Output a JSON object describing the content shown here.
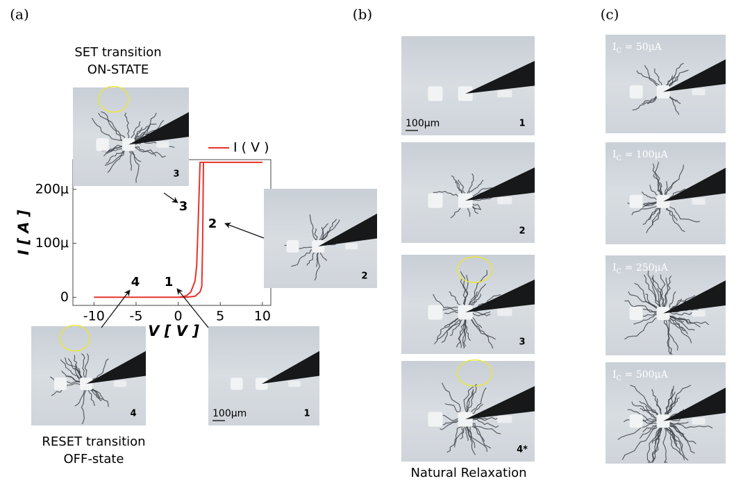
{
  "panel_labels": [
    "(a)",
    "(b)",
    "(c)"
  ],
  "chart_data": {
    "type": "line",
    "xlabel": "V [ V ]",
    "ylabel": "I [ A ]",
    "x": [
      -10,
      0,
      1,
      2,
      2.6,
      2.8,
      2.9,
      3,
      10,
      2.6,
      2.4,
      2.2,
      2,
      1.5,
      1,
      0.5,
      0,
      -10
    ],
    "series": [
      {
        "name": "I ( V )",
        "color": "#e8322a",
        "values": [
          0,
          0,
          0,
          2e-06,
          1e-05,
          2e-05,
          0.0001,
          0.00025,
          0.00025,
          0.00025,
          0.00015,
          6e-05,
          3e-05,
          1e-05,
          3e-06,
          1e-06,
          0,
          0
        ]
      }
    ],
    "xlim": [
      -12.5,
      11
    ],
    "xticks": [
      -10,
      -5,
      0,
      5,
      10
    ],
    "ylim": [
      -1.5e-05,
      0.000255
    ],
    "yticks": [
      0,
      {
        "value": 0.0001,
        "label": "100μ"
      },
      {
        "value": 0.0002,
        "label": "200μ"
      }
    ],
    "legend": "top-right",
    "annotations": [
      "3",
      "2",
      "1",
      "4"
    ]
  },
  "panel_a": {
    "set_caption": [
      "SET transition",
      "ON-STATE"
    ],
    "reset_caption": [
      "RESET transition",
      "OFF-state"
    ],
    "images": [
      {
        "label": "3"
      },
      {
        "label": "2"
      },
      {
        "label": "4"
      },
      {
        "label": "1",
        "scale": "100μm"
      }
    ]
  },
  "panel_b": {
    "caption": "Natural Relaxation",
    "images": [
      {
        "label": "1",
        "scale": "100μm"
      },
      {
        "label": "2"
      },
      {
        "label": "3"
      },
      {
        "label": "4*"
      }
    ]
  },
  "panel_c": {
    "images": [
      {
        "symbol": "I",
        "subscript": "C",
        "text": " = 50μA"
      },
      {
        "symbol": "I",
        "subscript": "C",
        "text": " = 100μA"
      },
      {
        "symbol": "I",
        "subscript": "C",
        "text": " = 250μA"
      },
      {
        "symbol": "I",
        "subscript": "C",
        "text": " = 500μA"
      }
    ]
  }
}
